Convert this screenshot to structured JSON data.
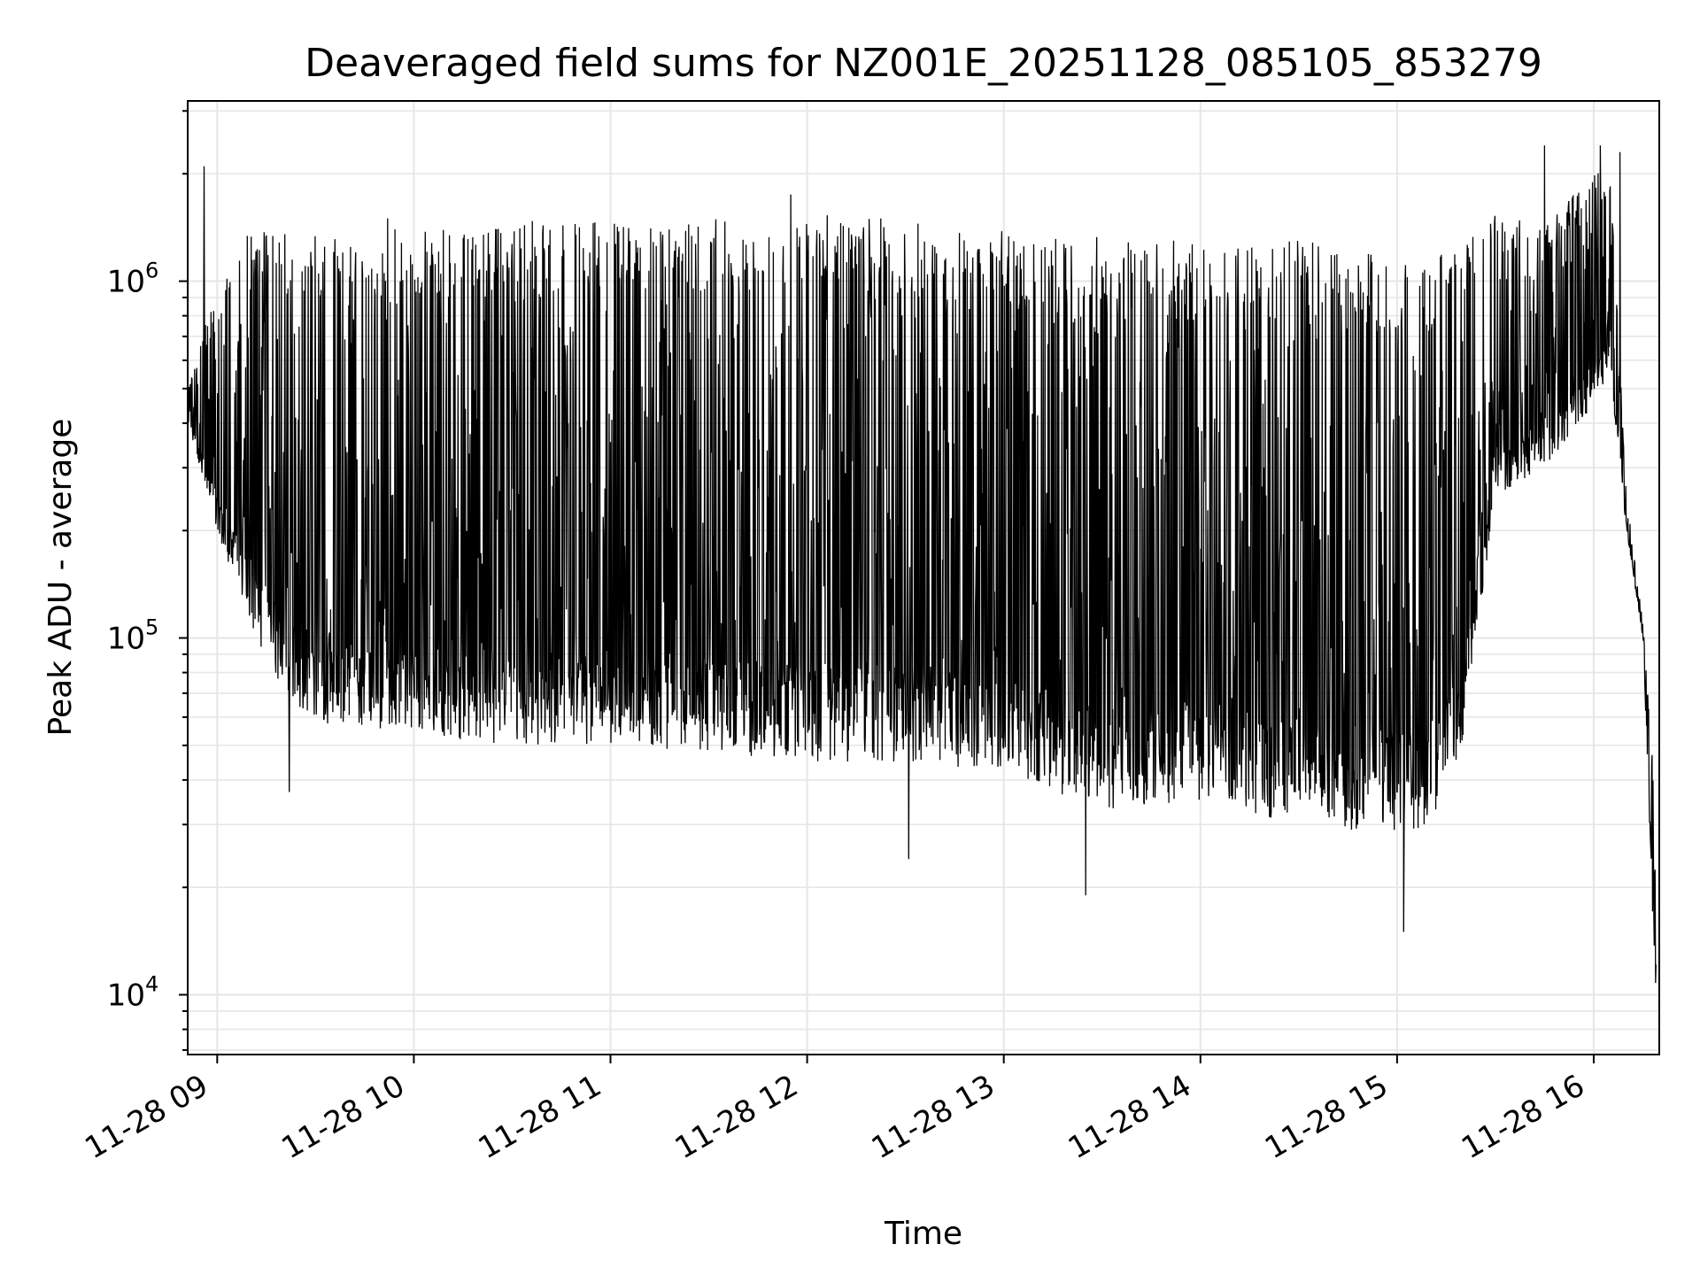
{
  "chart_data": {
    "type": "line",
    "title": "Deaveraged field sums for NZ001E_20251128_085105_853279",
    "xlabel": "Time",
    "ylabel": "Peak ADU - average",
    "x_axis": {
      "scale": "time",
      "range": [
        "2025-11-28T08:51",
        "2025-11-28T16:20"
      ],
      "ticks": [
        {
          "value": "2025-11-28T09:00",
          "label": "11-28 09"
        },
        {
          "value": "2025-11-28T10:00",
          "label": "11-28 10"
        },
        {
          "value": "2025-11-28T11:00",
          "label": "11-28 11"
        },
        {
          "value": "2025-11-28T12:00",
          "label": "11-28 12"
        },
        {
          "value": "2025-11-28T13:00",
          "label": "11-28 13"
        },
        {
          "value": "2025-11-28T14:00",
          "label": "11-28 14"
        },
        {
          "value": "2025-11-28T15:00",
          "label": "11-28 15"
        },
        {
          "value": "2025-11-28T16:00",
          "label": "11-28 16"
        }
      ]
    },
    "y_axis": {
      "scale": "log",
      "range": [
        6800,
        3200000
      ],
      "ticks": [
        {
          "value": 10000,
          "base": "10",
          "exp": "4"
        },
        {
          "value": 100000,
          "base": "10",
          "exp": "5"
        },
        {
          "value": 1000000,
          "base": "10",
          "exp": "6"
        }
      ]
    },
    "grid": true,
    "line_color": "#000000",
    "grid_color": "#e6e6e6",
    "series": [
      {
        "x": [
          "2025-11-28T08:51",
          "2025-11-28T09:00",
          "2025-11-28T09:10",
          "2025-11-28T09:20",
          "2025-11-28T09:30",
          "2025-11-28T09:45",
          "2025-11-28T10:00",
          "2025-11-28T10:20",
          "2025-11-28T10:40",
          "2025-11-28T11:00",
          "2025-11-28T11:30",
          "2025-11-28T12:00",
          "2025-11-28T12:30",
          "2025-11-28T13:00",
          "2025-11-28T13:30",
          "2025-11-28T14:00",
          "2025-11-28T14:30",
          "2025-11-28T15:00",
          "2025-11-28T15:10",
          "2025-11-28T15:20",
          "2025-11-28T15:30",
          "2025-11-28T15:45",
          "2025-11-28T16:00",
          "2025-11-28T16:05",
          "2025-11-28T16:10",
          "2025-11-28T16:15",
          "2025-11-28T16:19"
        ],
        "low": [
          400000,
          200000,
          110000,
          70000,
          58000,
          55000,
          55000,
          50000,
          50000,
          50000,
          48000,
          45000,
          45000,
          42000,
          33000,
          35000,
          30000,
          28000,
          30000,
          50000,
          250000,
          300000,
          450000,
          550000,
          200000,
          100000,
          9000
        ],
        "high": [
          500000,
          1000000,
          1400000,
          1400000,
          1400000,
          1400000,
          1400000,
          1400000,
          1500000,
          1450000,
          1500000,
          1550000,
          1500000,
          1400000,
          1350000,
          1300000,
          1300000,
          1250000,
          1250000,
          1300000,
          1550000,
          1450000,
          2000000,
          2100000,
          250000,
          110000,
          35000
        ],
        "peaks": [
          {
            "x": "2025-11-28T08:56",
            "y": 2100000
          },
          {
            "x": "2025-11-28T09:52",
            "y": 1500000
          },
          {
            "x": "2025-11-28T11:55",
            "y": 1750000
          },
          {
            "x": "2025-11-28T15:45",
            "y": 2400000
          },
          {
            "x": "2025-11-28T16:02",
            "y": 2400000
          },
          {
            "x": "2025-11-28T16:08",
            "y": 2300000
          }
        ],
        "troughs": [
          {
            "x": "2025-11-28T09:22",
            "y": 37000
          },
          {
            "x": "2025-11-28T12:31",
            "y": 24000
          },
          {
            "x": "2025-11-28T13:25",
            "y": 19000
          },
          {
            "x": "2025-11-28T15:02",
            "y": 15000
          }
        ]
      }
    ]
  }
}
